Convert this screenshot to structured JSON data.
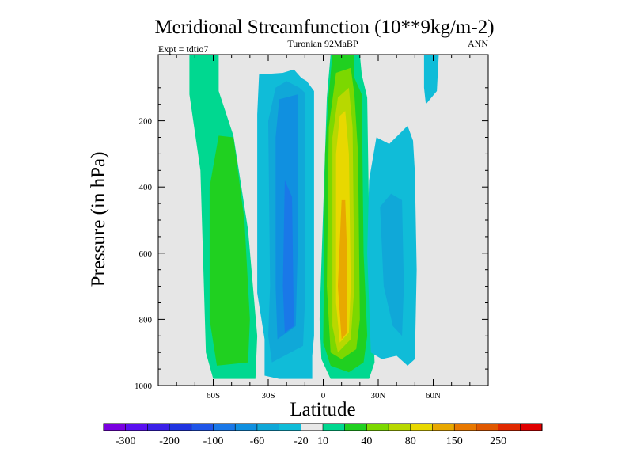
{
  "chart_data": {
    "type": "heatmap",
    "title": "Meridional Streamfunction (10**9kg/m-2)",
    "subtitle_left": "Expt = tdtio7",
    "subtitle_center": "Turonian  92MaBP",
    "subtitle_right": "ANN",
    "xlabel": "Latitude",
    "ylabel": "Pressure (in hPa)",
    "xlim": [
      -90,
      90
    ],
    "ylim": [
      1000,
      0
    ],
    "x_ticks": [
      {
        "value": -60,
        "label": "60S"
      },
      {
        "value": -30,
        "label": "30S"
      },
      {
        "value": 0,
        "label": "0"
      },
      {
        "value": 30,
        "label": "30N"
      },
      {
        "value": 60,
        "label": "60N"
      }
    ],
    "y_ticks": [
      {
        "value": 200,
        "label": "200"
      },
      {
        "value": 400,
        "label": "400"
      },
      {
        "value": 600,
        "label": "600"
      },
      {
        "value": 800,
        "label": "800"
      },
      {
        "value": 1000,
        "label": "1000"
      }
    ],
    "background_color": "#e6e6e6",
    "colorbar": {
      "colors": [
        "#7a00e0",
        "#5a10f0",
        "#3a20e8",
        "#1f33e0",
        "#1f55e8",
        "#1a78e8",
        "#1090e0",
        "#10a8d8",
        "#10bcd8",
        "#e8e8e8",
        "#00d890",
        "#20d020",
        "#7cd800",
        "#b8d800",
        "#e8d800",
        "#e8a800",
        "#e87800",
        "#e05800",
        "#e02800",
        "#e00000"
      ],
      "labels": [
        {
          "index": 1,
          "text": "-300"
        },
        {
          "index": 3,
          "text": "-200"
        },
        {
          "index": 5,
          "text": "-100"
        },
        {
          "index": 7,
          "text": "-60"
        },
        {
          "index": 9,
          "text": "-20"
        },
        {
          "index": 10,
          "text": "10"
        },
        {
          "index": 12,
          "text": "40"
        },
        {
          "index": 14,
          "text": "80"
        },
        {
          "index": 16,
          "text": "150"
        },
        {
          "index": 18,
          "text": "250"
        }
      ]
    },
    "cells": [
      {
        "name": "sh-outer-positive",
        "value": 10,
        "color": "#00d890",
        "outline": [
          [
            -73,
            0
          ],
          [
            -57,
            0
          ],
          [
            -57,
            110
          ],
          [
            -49,
            245
          ],
          [
            -41,
            530
          ],
          [
            -36,
            850
          ],
          [
            -37,
            980
          ],
          [
            -60,
            980
          ],
          [
            -64,
            900
          ],
          [
            -67,
            350
          ],
          [
            -73,
            120
          ]
        ]
      },
      {
        "name": "sh-positive-core",
        "value": 40,
        "color": "#20d020",
        "outline": [
          [
            -57,
            245
          ],
          [
            -49,
            250
          ],
          [
            -43,
            500
          ],
          [
            -40,
            800
          ],
          [
            -41,
            930
          ],
          [
            -58,
            940
          ],
          [
            -62,
            800
          ],
          [
            -62,
            400
          ]
        ]
      },
      {
        "name": "sh-negative-outer",
        "value": -10,
        "color": "#10bcd8",
        "outline": [
          [
            -35,
            60
          ],
          [
            -22,
            55
          ],
          [
            -16,
            45
          ],
          [
            -12,
            70
          ],
          [
            -9,
            80
          ],
          [
            -5,
            110
          ],
          [
            -5,
            850
          ],
          [
            -6,
            910
          ],
          [
            -6,
            980
          ],
          [
            -24,
            980
          ],
          [
            -32,
            970
          ],
          [
            -32,
            860
          ],
          [
            -36,
            720
          ],
          [
            -36,
            180
          ]
        ]
      },
      {
        "name": "sh-negative-mid",
        "value": -20,
        "color": "#10a8d8",
        "outline": [
          [
            -26,
            100
          ],
          [
            -20,
            80
          ],
          [
            -13,
            100
          ],
          [
            -10,
            115
          ],
          [
            -10,
            750
          ],
          [
            -11,
            880
          ],
          [
            -28,
            930
          ],
          [
            -30,
            850
          ],
          [
            -29,
            700
          ],
          [
            -30,
            200
          ]
        ]
      },
      {
        "name": "sh-negative-mid2",
        "value": -40,
        "color": "#1090e0",
        "outline": [
          [
            -24,
            135
          ],
          [
            -14,
            120
          ],
          [
            -14,
            600
          ],
          [
            -15,
            820
          ],
          [
            -25,
            860
          ],
          [
            -26,
            700
          ],
          [
            -26,
            250
          ]
        ]
      },
      {
        "name": "sh-negative-core",
        "value": -60,
        "color": "#1a78e8",
        "outline": [
          [
            -21,
            380
          ],
          [
            -17,
            430
          ],
          [
            -16,
            820
          ],
          [
            -21,
            840
          ],
          [
            -22,
            700
          ]
        ]
      },
      {
        "name": "eq-positive-outer",
        "value": 10,
        "color": "#00d890",
        "outline": [
          [
            4,
            0
          ],
          [
            20,
            0
          ],
          [
            21,
            60
          ],
          [
            24,
            130
          ],
          [
            25,
            500
          ],
          [
            27,
            800
          ],
          [
            28,
            930
          ],
          [
            25,
            980
          ],
          [
            4,
            980
          ],
          [
            -1,
            920
          ],
          [
            -2,
            800
          ],
          [
            2,
            130
          ]
        ]
      },
      {
        "name": "eq-positive-l2",
        "value": 40,
        "color": "#20d020",
        "outline": [
          [
            5,
            0
          ],
          [
            17,
            0
          ],
          [
            17,
            70
          ],
          [
            21,
            120
          ],
          [
            22,
            600
          ],
          [
            24,
            850
          ],
          [
            22,
            930
          ],
          [
            14,
            960
          ],
          [
            4,
            940
          ],
          [
            0,
            870
          ],
          [
            1,
            300
          ],
          [
            3,
            120
          ]
        ]
      },
      {
        "name": "eq-positive-l3",
        "value": 60,
        "color": "#7cd800",
        "outline": [
          [
            7,
            55
          ],
          [
            15,
            40
          ],
          [
            17,
            120
          ],
          [
            19,
            300
          ],
          [
            20,
            800
          ],
          [
            18,
            890
          ],
          [
            10,
            920
          ],
          [
            4,
            900
          ],
          [
            2,
            700
          ],
          [
            3,
            220
          ]
        ]
      },
      {
        "name": "eq-positive-l4",
        "value": 80,
        "color": "#b8d800",
        "outline": [
          [
            8,
            130
          ],
          [
            14,
            100
          ],
          [
            16,
            220
          ],
          [
            17,
            700
          ],
          [
            15,
            860
          ],
          [
            8,
            900
          ],
          [
            5,
            820
          ],
          [
            5,
            250
          ]
        ]
      },
      {
        "name": "eq-positive-core-a",
        "value": 100,
        "color": "#e8d800",
        "outline": [
          [
            9,
            185
          ],
          [
            12,
            170
          ],
          [
            14,
            300
          ],
          [
            15,
            700
          ],
          [
            14,
            840
          ],
          [
            9,
            870
          ],
          [
            7,
            750
          ],
          [
            7,
            300
          ]
        ]
      },
      {
        "name": "eq-positive-core-b",
        "value": 120,
        "color": "#e8a800",
        "outline": [
          [
            10,
            440
          ],
          [
            12,
            440
          ],
          [
            13,
            600
          ],
          [
            13,
            840
          ],
          [
            10,
            860
          ],
          [
            8,
            700
          ]
        ]
      },
      {
        "name": "nh-negative-outer",
        "value": -10,
        "color": "#10bcd8",
        "outline": [
          [
            25,
            380
          ],
          [
            29,
            250
          ],
          [
            36,
            270
          ],
          [
            46,
            215
          ],
          [
            49,
            260
          ],
          [
            50,
            355
          ],
          [
            51,
            650
          ],
          [
            50,
            920
          ],
          [
            46,
            940
          ],
          [
            40,
            910
          ],
          [
            32,
            920
          ],
          [
            26,
            900
          ],
          [
            24,
            600
          ]
        ]
      },
      {
        "name": "nh-negative-mid",
        "value": -20,
        "color": "#10a8d8",
        "outline": [
          [
            31,
            460
          ],
          [
            37,
            420
          ],
          [
            43,
            440
          ],
          [
            44,
            700
          ],
          [
            43,
            850
          ],
          [
            38,
            820
          ],
          [
            33,
            700
          ]
        ]
      },
      {
        "name": "nh-highlat-negative",
        "value": -10,
        "color": "#10bcd8",
        "outline": [
          [
            55,
            0
          ],
          [
            63,
            0
          ],
          [
            62,
            110
          ],
          [
            56,
            150
          ],
          [
            55,
            100
          ]
        ]
      }
    ]
  }
}
